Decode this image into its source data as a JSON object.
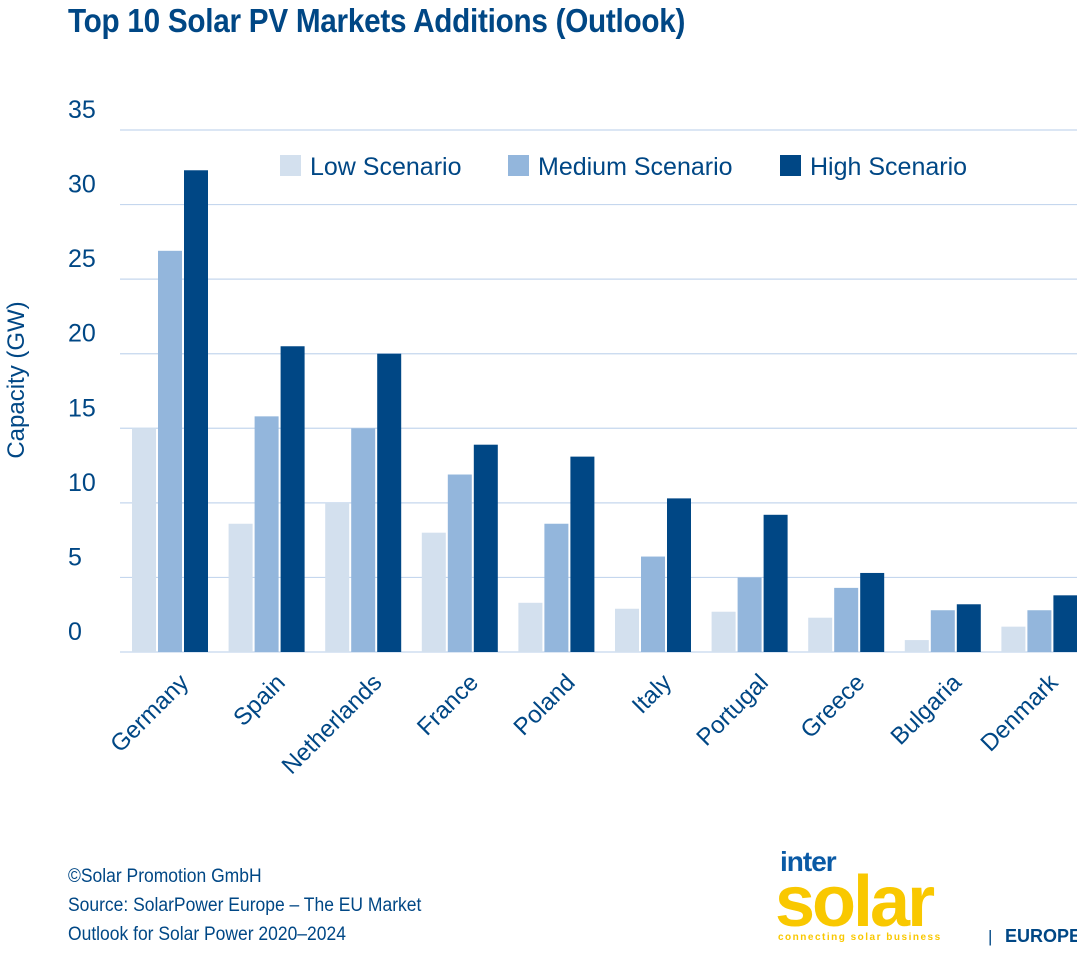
{
  "chart_data": {
    "type": "bar",
    "title": "Top 10 Solar PV Markets Additions (Outlook)",
    "xlabel": "",
    "ylabel": "Capacity (GW)",
    "ylim": [
      0,
      35
    ],
    "yticks": [
      0,
      5,
      10,
      15,
      20,
      25,
      30,
      35
    ],
    "grid": true,
    "legend_position": "top",
    "categories": [
      "Germany",
      "Spain",
      "Netherlands",
      "France",
      "Poland",
      "Italy",
      "Portugal",
      "Greece",
      "Bulgaria",
      "Denmark"
    ],
    "series": [
      {
        "name": "Low Scenario",
        "color": "#d3e0ee",
        "values": [
          15.0,
          8.6,
          10.0,
          8.0,
          3.3,
          2.9,
          2.7,
          2.3,
          0.8,
          1.7
        ]
      },
      {
        "name": "Medium Scenario",
        "color": "#93b6dc",
        "values": [
          26.9,
          15.8,
          15.0,
          11.9,
          8.6,
          6.4,
          5.0,
          4.3,
          2.8,
          2.8
        ]
      },
      {
        "name": "High Scenario",
        "color": "#004785",
        "values": [
          32.3,
          20.5,
          20.0,
          13.9,
          13.1,
          10.3,
          9.2,
          5.3,
          3.2,
          3.8
        ]
      }
    ],
    "gridline_color": "#c5d7ee"
  },
  "credits": {
    "copyright": "©Solar Promotion GmbH",
    "source_line1": "Source: SolarPower Europe – The EU Market",
    "source_line2": "Outlook for Solar Power 2020–2024"
  },
  "logo": {
    "inter": "inter",
    "solar": "solar",
    "tagline": "connecting solar business",
    "separator": "|",
    "region": "EUROPE"
  }
}
